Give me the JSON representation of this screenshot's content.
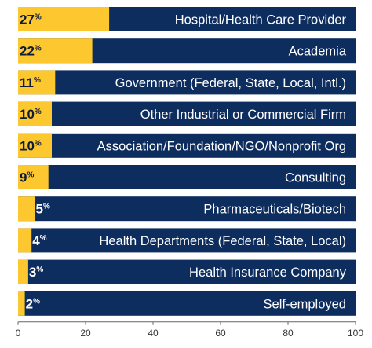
{
  "chart_data": {
    "type": "bar",
    "orientation": "horizontal",
    "stacked_to": 100,
    "categories": [
      "Hospital/Health Care Provider",
      "Academia",
      "Government (Federal, State, Local, Intl.)",
      "Other Industrial or Commercial Firm",
      "Association/Foundation/NGO/Nonprofit Org",
      "Consulting",
      "Pharmaceuticals/Biotech",
      "Health Departments (Federal, State, Local)",
      "Health Insurance Company",
      "Self-employed"
    ],
    "values": [
      27,
      22,
      11,
      10,
      10,
      9,
      5,
      4,
      3,
      2
    ],
    "value_suffix": "%",
    "title": "",
    "xlabel": "",
    "ylabel": "",
    "xlim": [
      0,
      100
    ],
    "x_ticks": [
      0,
      20,
      40,
      60,
      80,
      100
    ],
    "grid": false,
    "legend": "none",
    "colors": {
      "value_fill": "#fdc82f",
      "remainder_fill": "#0d2d5e",
      "label_text": "#ffffff",
      "value_text": "#0d1b3d"
    }
  }
}
